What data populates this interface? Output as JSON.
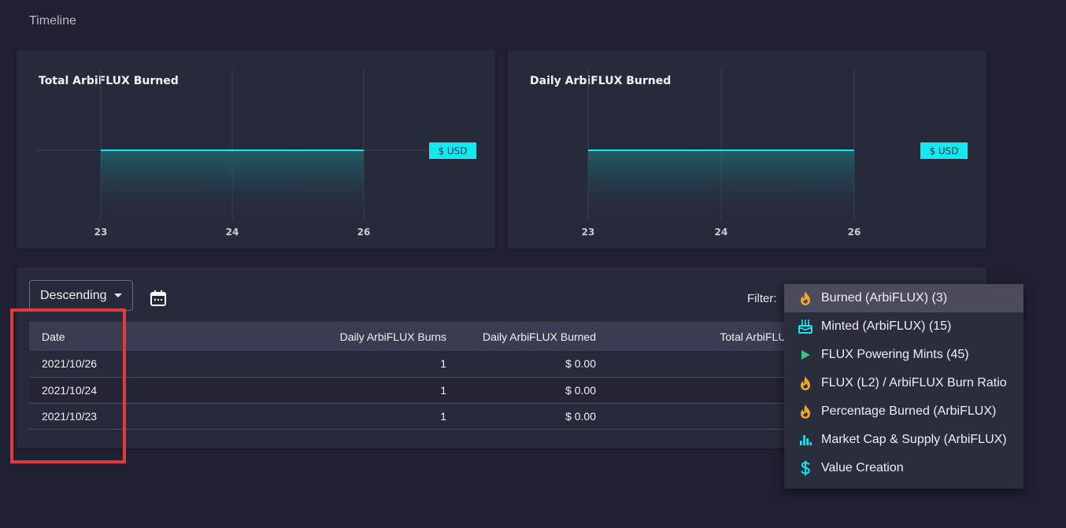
{
  "page": {
    "section_title": "Timeline"
  },
  "colors": {
    "accent": "#15e8f0",
    "background": "#1f2133",
    "card": "#272a3a",
    "fire": "#f5a623",
    "play": "#3fbf8c",
    "highlight": "#e0393e"
  },
  "charts": [
    {
      "title": "Total ArbiFLUX Burned",
      "tag_label": "$ USD"
    },
    {
      "title": "Daily ArbiFLUX Burned",
      "tag_label": "$ USD"
    }
  ],
  "chart_data": [
    {
      "type": "area",
      "title": "Total ArbiFLUX Burned",
      "x": [
        "23",
        "24",
        "26"
      ],
      "series": [
        {
          "values": [
            0,
            0,
            0
          ]
        }
      ],
      "xlabel": "",
      "ylabel": "",
      "grid": true,
      "legend": "none"
    },
    {
      "type": "area",
      "title": "Daily ArbiFLUX Burned",
      "x": [
        "23",
        "24",
        "26"
      ],
      "series": [
        {
          "values": [
            0,
            0,
            0
          ]
        }
      ],
      "xlabel": "",
      "ylabel": "",
      "grid": true,
      "legend": "none"
    }
  ],
  "controls": {
    "sort_label": "Descending",
    "calendar_icon": "calendar-icon",
    "filter_label": "Filter:"
  },
  "table": {
    "columns": [
      "Date",
      "Daily ArbiFLUX Burns",
      "Daily ArbiFLUX Burned",
      "Total ArbiFLUX B"
    ],
    "rows": [
      {
        "date": "2021/10/26",
        "burns": "1",
        "burned": "$ 0.00"
      },
      {
        "date": "2021/10/24",
        "burns": "1",
        "burned": "$ 0.00"
      },
      {
        "date": "2021/10/23",
        "burns": "1",
        "burned": "$ 0.00"
      }
    ]
  },
  "filter_menu": {
    "items": [
      {
        "label": "Burned (ArbiFLUX) (3)",
        "icon": "fire-icon",
        "selected": true
      },
      {
        "label": "Minted (ArbiFLUX) (15)",
        "icon": "cake-icon",
        "selected": false
      },
      {
        "label": "FLUX Powering Mints (45)",
        "icon": "play-icon",
        "selected": false
      },
      {
        "label": "FLUX (L2) / ArbiFLUX Burn Ratio",
        "icon": "fire-icon",
        "selected": false
      },
      {
        "label": "Percentage Burned (ArbiFLUX)",
        "icon": "fire-icon",
        "selected": false
      },
      {
        "label": "Market Cap & Supply (ArbiFLUX)",
        "icon": "bar-chart-icon",
        "selected": false
      },
      {
        "label": "Value Creation",
        "icon": "dollar-icon",
        "selected": false
      }
    ]
  }
}
